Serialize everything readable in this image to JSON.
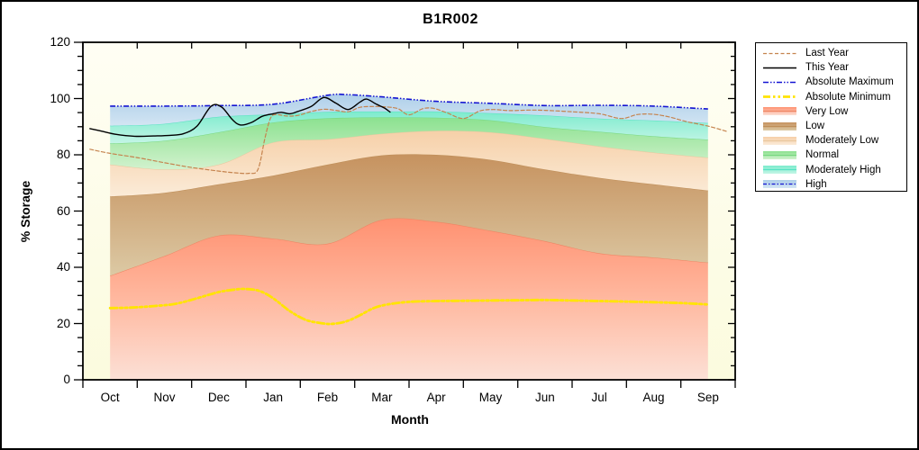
{
  "window": {
    "background": "#FFFFFF",
    "border_color": "#000000"
  },
  "chart_data": {
    "type": "area",
    "title": "B1R002",
    "xlabel": "Month",
    "ylabel": "% Storage",
    "x_categories": [
      "Oct",
      "Nov",
      "Dec",
      "Jan",
      "Feb",
      "Mar",
      "Apr",
      "May",
      "Jun",
      "Jul",
      "Aug",
      "Sep"
    ],
    "ylim": [
      0,
      120
    ],
    "y_major_ticks": [
      0,
      20,
      40,
      60,
      80,
      100,
      120
    ],
    "y_minor_step": 5,
    "grid": false,
    "legend_position": "top-right",
    "plot_background_top": "#FFFEF4",
    "plot_background_bottom": "#FBFBDE",
    "bands": [
      {
        "name": "very-low",
        "label": "Very Low",
        "upper": [
          37.0,
          44.0,
          51.3,
          50.2,
          48.4,
          56.9,
          56.2,
          53.0,
          49.3,
          45.0,
          43.5,
          41.7
        ],
        "lower": 0,
        "fill_top": "#FF9171",
        "fill_mid": "#FFB89F",
        "fill_bottom": "#FCE0D6",
        "edge_color": "#EE8563",
        "edge_width": 1.1
      },
      {
        "name": "low",
        "label": "Low",
        "upper": [
          65.2,
          66.5,
          69.5,
          72.6,
          76.5,
          79.8,
          80.0,
          78.2,
          74.8,
          71.8,
          69.5,
          67.3
        ],
        "lower": "very-low",
        "fill_top": "#C6925F",
        "fill_bottom": "#DCC9A4",
        "edge_color": "#BE8E58",
        "edge_width": 1
      },
      {
        "name": "moderately-low",
        "label": "Moderately Low",
        "upper": [
          76.5,
          74.8,
          76.5,
          84.4,
          85.5,
          87.5,
          88.5,
          88.0,
          85.7,
          83.0,
          80.8,
          79.0
        ],
        "lower": "low",
        "fill_top": "#F6D0A8",
        "fill_bottom": "#FBEBD8",
        "edge_color": "#E9C79E",
        "edge_width": 1
      },
      {
        "name": "normal",
        "label": "Normal",
        "upper": [
          84.0,
          85.0,
          88.0,
          91.5,
          93.0,
          93.3,
          93.2,
          92.3,
          89.9,
          88.2,
          86.6,
          85.4
        ],
        "lower": "moderately-low",
        "fill_top": "#8BE18F",
        "fill_bottom": "#D2F2CE",
        "edge_color": "#77D77F",
        "edge_width": 1
      },
      {
        "name": "moderately-high",
        "label": "Moderately High",
        "upper": [
          90.3,
          91.0,
          93.5,
          94.4,
          95.3,
          95.4,
          95.4,
          94.8,
          94.0,
          92.9,
          92.2,
          91.3
        ],
        "lower": "normal",
        "fill_top": "#7CEBCD",
        "fill_bottom": "#C4F5E6",
        "edge_color": "#55E2C2",
        "edge_width": 1
      },
      {
        "name": "high",
        "label": "High",
        "upper": [
          [
            0,
            97.3
          ],
          [
            1,
            97.3
          ],
          [
            2,
            97.5
          ],
          [
            3,
            98.0
          ],
          [
            4,
            101.2
          ],
          [
            4.35,
            101.4
          ],
          [
            5,
            100.6
          ],
          [
            6,
            99.0
          ],
          [
            7,
            98.3
          ],
          [
            8,
            97.5
          ],
          [
            9,
            97.6
          ],
          [
            10,
            97.3
          ],
          [
            11,
            96.3
          ]
        ],
        "lower": "moderately-high",
        "fill_top": "#AECFE9",
        "fill_bottom": "#D3E5F3",
        "edge_color": "#1414D2",
        "edge_width": 1.6,
        "edge_dash": "6 2 1.5 2 1.5 2",
        "edge_is_series": "Absolute Maximum"
      }
    ],
    "lines": [
      {
        "name": "absolute-minimum",
        "label": "Absolute Minimum",
        "color": "#FFE400",
        "width": 2.8,
        "dash": "8 3 2.5 3 2.5 3",
        "points": [
          [
            0,
            25.5
          ],
          [
            0.4,
            25.7
          ],
          [
            0.8,
            26.2
          ],
          [
            1.2,
            27.0
          ],
          [
            1.6,
            29.0
          ],
          [
            2.0,
            31.2
          ],
          [
            2.3,
            32.1
          ],
          [
            2.5,
            32.3
          ],
          [
            2.75,
            31.6
          ],
          [
            3.0,
            29.0
          ],
          [
            3.3,
            24.5
          ],
          [
            3.6,
            21.3
          ],
          [
            3.9,
            20.1
          ],
          [
            4.1,
            19.9
          ],
          [
            4.35,
            20.8
          ],
          [
            4.6,
            23.0
          ],
          [
            4.85,
            25.5
          ],
          [
            5.1,
            26.8
          ],
          [
            5.5,
            27.7
          ],
          [
            6.0,
            28.0
          ],
          [
            6.5,
            28.1
          ],
          [
            7.0,
            28.2
          ],
          [
            7.5,
            28.3
          ],
          [
            8.0,
            28.4
          ],
          [
            8.5,
            28.2
          ],
          [
            9.0,
            28.0
          ],
          [
            9.5,
            27.8
          ],
          [
            10.0,
            27.6
          ],
          [
            10.5,
            27.3
          ],
          [
            11.0,
            26.8
          ]
        ]
      },
      {
        "name": "last-year",
        "label": "Last Year",
        "color": "#C5834E",
        "width": 1.2,
        "dash": "4 2.5",
        "points": [
          [
            -0.37,
            82.0
          ],
          [
            0,
            80.5
          ],
          [
            0.5,
            79.0
          ],
          [
            1,
            77.2
          ],
          [
            1.5,
            75.5
          ],
          [
            2,
            74.2
          ],
          [
            2.3,
            73.6
          ],
          [
            2.55,
            73.4
          ],
          [
            2.72,
            74.8
          ],
          [
            2.85,
            86.0
          ],
          [
            2.95,
            93.0
          ],
          [
            3.05,
            94.3
          ],
          [
            3.25,
            93.8
          ],
          [
            3.45,
            94.0
          ],
          [
            3.7,
            95.4
          ],
          [
            3.93,
            96.2
          ],
          [
            4.15,
            95.8
          ],
          [
            4.38,
            95.3
          ],
          [
            4.6,
            96.9
          ],
          [
            4.85,
            97.2
          ],
          [
            5.1,
            97.0
          ],
          [
            5.3,
            96.4
          ],
          [
            5.5,
            94.2
          ],
          [
            5.75,
            96.4
          ],
          [
            5.95,
            96.5
          ],
          [
            6.2,
            94.9
          ],
          [
            6.5,
            92.9
          ],
          [
            6.8,
            95.6
          ],
          [
            7.05,
            96.1
          ],
          [
            7.35,
            95.7
          ],
          [
            7.7,
            95.9
          ],
          [
            8.0,
            95.8
          ],
          [
            8.5,
            95.3
          ],
          [
            9.0,
            94.6
          ],
          [
            9.4,
            92.9
          ],
          [
            9.7,
            94.3
          ],
          [
            10.0,
            94.4
          ],
          [
            10.3,
            93.4
          ],
          [
            10.6,
            91.8
          ],
          [
            11.0,
            90.2
          ],
          [
            11.35,
            88.3
          ]
        ]
      },
      {
        "name": "this-year",
        "label": "This Year",
        "color": "#000000",
        "width": 1.4,
        "dash": "",
        "points": [
          [
            -0.37,
            89.3
          ],
          [
            -0.15,
            88.4
          ],
          [
            0.1,
            87.3
          ],
          [
            0.45,
            86.6
          ],
          [
            0.8,
            86.7
          ],
          [
            1.1,
            86.9
          ],
          [
            1.35,
            87.5
          ],
          [
            1.6,
            90.2
          ],
          [
            1.86,
            97.3
          ],
          [
            2.05,
            97.0
          ],
          [
            2.25,
            92.5
          ],
          [
            2.4,
            90.6
          ],
          [
            2.6,
            91.5
          ],
          [
            2.8,
            93.7
          ],
          [
            3.0,
            94.6
          ],
          [
            3.15,
            95.1
          ],
          [
            3.3,
            94.6
          ],
          [
            3.45,
            95.4
          ],
          [
            3.7,
            97.2
          ],
          [
            3.93,
            100.4
          ],
          [
            4.15,
            98.4
          ],
          [
            4.38,
            96.1
          ],
          [
            4.6,
            98.8
          ],
          [
            4.72,
            99.8
          ],
          [
            4.9,
            98.0
          ],
          [
            5.05,
            96.6
          ],
          [
            5.15,
            95.2
          ]
        ]
      }
    ]
  },
  "legend": {
    "entries": [
      {
        "label": "Last Year",
        "swatch": "line",
        "color": "#C5834E",
        "width": 1.2,
        "dash": "4 2.5"
      },
      {
        "label": "This Year",
        "swatch": "line",
        "color": "#000000",
        "width": 1.4,
        "dash": ""
      },
      {
        "label": "Absolute Maximum",
        "swatch": "line",
        "color": "#1414D2",
        "width": 1.6,
        "dash": "6 2 1.5 2 1.5 2"
      },
      {
        "label": "Absolute Minimum",
        "swatch": "line",
        "color": "#FFE400",
        "width": 2.8,
        "dash": "8 3 2.5 3 2.5 3"
      },
      {
        "label": "Very Low",
        "swatch": "band",
        "top": "#FF9171",
        "bottom": "#FCE0D6",
        "line": "#EE8563"
      },
      {
        "label": "Low",
        "swatch": "band",
        "top": "#C6925F",
        "bottom": "#DCC9A4",
        "line": "#BE8E58"
      },
      {
        "label": "Moderately Low",
        "swatch": "band",
        "top": "#F6D0A8",
        "bottom": "#FBEBD8",
        "line": "#E9C79E"
      },
      {
        "label": "Normal",
        "swatch": "band",
        "top": "#8BE18F",
        "bottom": "#D2F2CE",
        "line": "#77D77F"
      },
      {
        "label": "Moderately High",
        "swatch": "band",
        "top": "#7CEBCD",
        "bottom": "#C4F5E6",
        "line": "#55E2C2"
      },
      {
        "label": "High",
        "swatch": "band",
        "top": "#AECFE9",
        "bottom": "#D3E5F3",
        "line": "#1414D2",
        "line_dash": "4 2 1.5 2"
      }
    ]
  }
}
